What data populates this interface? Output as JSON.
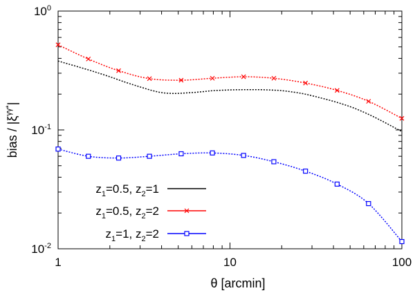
{
  "chart_data": {
    "type": "line",
    "xscale": "log",
    "yscale": "log",
    "xlim": [
      1,
      100
    ],
    "ylim": [
      0.01,
      1
    ],
    "xlabel": "θ [arcmin]",
    "ylabel_main": "bias / |ξ",
    "ylabel_sup": "γγ*",
    "ylabel_tail": "|",
    "x_ticks": [
      {
        "value": 1,
        "label": "1"
      },
      {
        "value": 10,
        "label": "10"
      },
      {
        "value": 100,
        "label": "100"
      }
    ],
    "y_ticks": [
      {
        "value": 0.01,
        "base": "10",
        "exp": "-2"
      },
      {
        "value": 0.1,
        "base": "10",
        "exp": "-1"
      },
      {
        "value": 1,
        "base": "10",
        "exp": "0"
      }
    ],
    "grid": false,
    "legend_position": "bottom-left",
    "series": [
      {
        "name_html": [
          "z",
          "1",
          "=0.5, z",
          "2",
          "=1"
        ],
        "color": "#000000",
        "marker": "none",
        "x": [
          1,
          1.5,
          2,
          2.5,
          3,
          3.5,
          4,
          4.5,
          5,
          6,
          7,
          8,
          10,
          12,
          15,
          18,
          20,
          25,
          30,
          40,
          50,
          60,
          70,
          80,
          90,
          100
        ],
        "y": [
          0.38,
          0.32,
          0.28,
          0.25,
          0.23,
          0.215,
          0.206,
          0.203,
          0.203,
          0.206,
          0.21,
          0.214,
          0.217,
          0.218,
          0.218,
          0.216,
          0.214,
          0.205,
          0.194,
          0.174,
          0.157,
          0.141,
          0.127,
          0.115,
          0.105,
          0.097
        ]
      },
      {
        "name_html": [
          "z",
          "1",
          "=0.5, z",
          "2",
          "=2"
        ],
        "color": "#ff0000",
        "marker": "x",
        "x": [
          1,
          1.5,
          2.25,
          3.4,
          5.2,
          7.9,
          12,
          18,
          27.5,
          42,
          64,
          100
        ],
        "y": [
          0.52,
          0.395,
          0.315,
          0.27,
          0.262,
          0.272,
          0.28,
          0.272,
          0.248,
          0.215,
          0.174,
          0.125
        ]
      },
      {
        "name_html": [
          "z",
          "1",
          "=1, z",
          "2",
          "=2"
        ],
        "color": "#0000ff",
        "marker": "square",
        "x": [
          1,
          1.5,
          2.25,
          3.4,
          5.2,
          7.9,
          12,
          18,
          27.5,
          42,
          64,
          100
        ],
        "y": [
          0.069,
          0.06,
          0.058,
          0.06,
          0.063,
          0.064,
          0.061,
          0.054,
          0.045,
          0.035,
          0.024,
          0.0115
        ]
      }
    ]
  }
}
